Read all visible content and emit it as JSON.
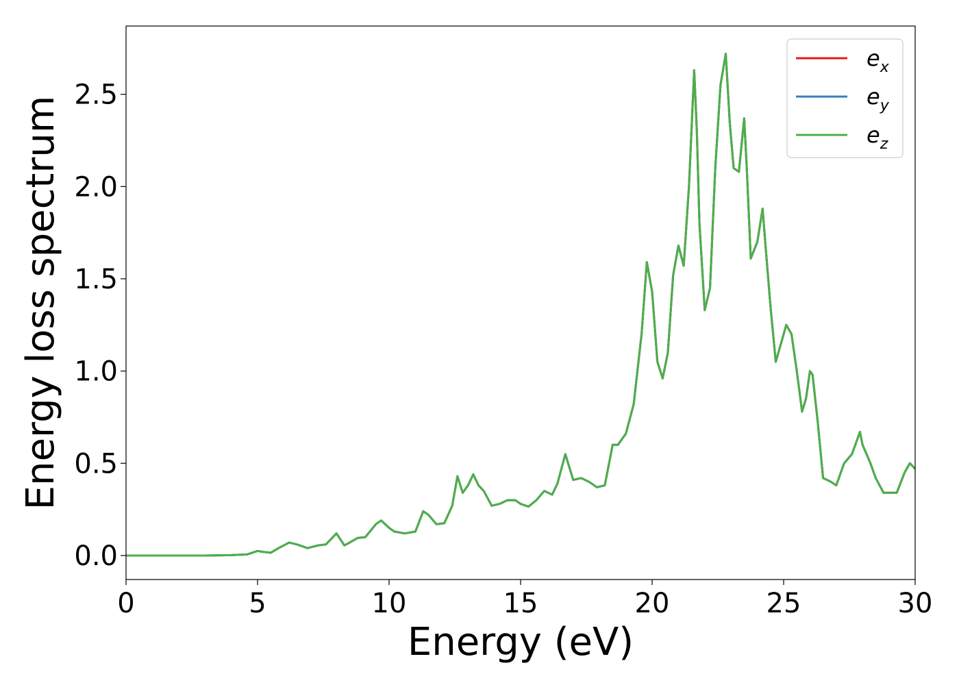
{
  "chart_data": {
    "type": "line",
    "xlabel": "Energy (eV)",
    "ylabel": "Energy loss spectrum",
    "xlim": [
      0,
      30
    ],
    "ylim": [
      -0.13,
      2.87
    ],
    "xticks": [
      0,
      5,
      10,
      15,
      20,
      25,
      30
    ],
    "xtick_labels": [
      "0",
      "5",
      "10",
      "15",
      "20",
      "25",
      "30"
    ],
    "yticks": [
      0.0,
      0.5,
      1.0,
      1.5,
      2.0,
      2.5
    ],
    "ytick_labels": [
      "0.0",
      "0.5",
      "1.0",
      "1.5",
      "2.0",
      "2.5"
    ],
    "grid": false,
    "legend_position": "top-right",
    "legend": [
      {
        "base": "e",
        "sub": "x",
        "color": "#e41a1c"
      },
      {
        "base": "e",
        "sub": "y",
        "color": "#377eb8"
      },
      {
        "base": "e",
        "sub": "z",
        "color": "#4daf4a"
      }
    ],
    "x": [
      0,
      1,
      2,
      3,
      4,
      4.6,
      5,
      5.2,
      5.5,
      5.8,
      6.2,
      6.5,
      6.9,
      7.3,
      7.6,
      8,
      8.3,
      8.5,
      8.8,
      9.1,
      9.5,
      9.7,
      10,
      10.2,
      10.6,
      11,
      11.3,
      11.5,
      11.8,
      12.1,
      12.4,
      12.6,
      12.8,
      13,
      13.2,
      13.4,
      13.6,
      13.9,
      14.2,
      14.5,
      14.8,
      15,
      15.3,
      15.6,
      15.9,
      16.2,
      16.4,
      16.7,
      17,
      17.3,
      17.6,
      17.9,
      18.2,
      18.5,
      18.7,
      19,
      19.3,
      19.6,
      19.8,
      20,
      20.2,
      20.4,
      20.6,
      20.8,
      21,
      21.2,
      21.4,
      21.6,
      21.7,
      21.8,
      22,
      22.2,
      22.4,
      22.6,
      22.8,
      22.95,
      23.1,
      23.3,
      23.5,
      23.6,
      23.75,
      24,
      24.2,
      24.3,
      24.5,
      24.7,
      24.9,
      25.1,
      25.3,
      25.5,
      25.7,
      25.85,
      26,
      26.1,
      26.3,
      26.5,
      26.8,
      27,
      27.3,
      27.6,
      27.9,
      28,
      28.3,
      28.5,
      28.8,
      29,
      29.3,
      29.6,
      29.8,
      30
    ],
    "series": [
      {
        "name": "e_x",
        "color": "#e41a1c",
        "values": [
          0,
          0,
          0,
          0,
          0.002,
          0.006,
          0.025,
          0.02,
          0.015,
          0.04,
          0.07,
          0.06,
          0.04,
          0.055,
          0.06,
          0.12,
          0.055,
          0.07,
          0.095,
          0.1,
          0.17,
          0.19,
          0.15,
          0.13,
          0.12,
          0.13,
          0.24,
          0.22,
          0.17,
          0.175,
          0.27,
          0.43,
          0.34,
          0.38,
          0.44,
          0.38,
          0.35,
          0.27,
          0.28,
          0.3,
          0.3,
          0.28,
          0.265,
          0.3,
          0.35,
          0.33,
          0.39,
          0.55,
          0.41,
          0.42,
          0.4,
          0.37,
          0.38,
          0.6,
          0.6,
          0.66,
          0.82,
          1.2,
          1.59,
          1.43,
          1.05,
          0.96,
          1.1,
          1.52,
          1.68,
          1.57,
          2.0,
          2.63,
          2.3,
          1.8,
          1.33,
          1.45,
          2.1,
          2.55,
          2.72,
          2.35,
          2.1,
          2.08,
          2.37,
          2.1,
          1.61,
          1.7,
          1.88,
          1.7,
          1.35,
          1.05,
          1.15,
          1.25,
          1.2,
          1.0,
          0.78,
          0.85,
          1.0,
          0.98,
          0.72,
          0.42,
          0.4,
          0.38,
          0.5,
          0.55,
          0.67,
          0.6,
          0.5,
          0.42,
          0.34,
          0.34,
          0.34,
          0.45,
          0.5,
          0.47
        ]
      },
      {
        "name": "e_y",
        "color": "#377eb8",
        "values": [
          0,
          0,
          0,
          0,
          0.002,
          0.006,
          0.025,
          0.02,
          0.015,
          0.04,
          0.07,
          0.06,
          0.04,
          0.055,
          0.06,
          0.12,
          0.055,
          0.07,
          0.095,
          0.1,
          0.17,
          0.19,
          0.15,
          0.13,
          0.12,
          0.13,
          0.24,
          0.22,
          0.17,
          0.175,
          0.27,
          0.43,
          0.34,
          0.38,
          0.44,
          0.38,
          0.35,
          0.27,
          0.28,
          0.3,
          0.3,
          0.28,
          0.265,
          0.3,
          0.35,
          0.33,
          0.39,
          0.55,
          0.41,
          0.42,
          0.4,
          0.37,
          0.38,
          0.6,
          0.6,
          0.66,
          0.82,
          1.2,
          1.59,
          1.43,
          1.05,
          0.96,
          1.1,
          1.52,
          1.68,
          1.57,
          2.0,
          2.63,
          2.3,
          1.8,
          1.33,
          1.45,
          2.1,
          2.55,
          2.72,
          2.35,
          2.1,
          2.08,
          2.37,
          2.1,
          1.61,
          1.7,
          1.88,
          1.7,
          1.35,
          1.05,
          1.15,
          1.25,
          1.2,
          1.0,
          0.78,
          0.85,
          1.0,
          0.98,
          0.72,
          0.42,
          0.4,
          0.38,
          0.5,
          0.55,
          0.67,
          0.6,
          0.5,
          0.42,
          0.34,
          0.34,
          0.34,
          0.45,
          0.5,
          0.47
        ]
      },
      {
        "name": "e_z",
        "color": "#4daf4a",
        "values": [
          0,
          0,
          0,
          0,
          0.002,
          0.006,
          0.025,
          0.02,
          0.015,
          0.04,
          0.07,
          0.06,
          0.04,
          0.055,
          0.06,
          0.12,
          0.055,
          0.07,
          0.095,
          0.1,
          0.17,
          0.19,
          0.15,
          0.13,
          0.12,
          0.13,
          0.24,
          0.22,
          0.17,
          0.175,
          0.27,
          0.43,
          0.34,
          0.38,
          0.44,
          0.38,
          0.35,
          0.27,
          0.28,
          0.3,
          0.3,
          0.28,
          0.265,
          0.3,
          0.35,
          0.33,
          0.39,
          0.55,
          0.41,
          0.42,
          0.4,
          0.37,
          0.38,
          0.6,
          0.6,
          0.66,
          0.82,
          1.2,
          1.59,
          1.43,
          1.05,
          0.96,
          1.1,
          1.52,
          1.68,
          1.57,
          2.0,
          2.63,
          2.3,
          1.8,
          1.33,
          1.45,
          2.1,
          2.55,
          2.72,
          2.35,
          2.1,
          2.08,
          2.37,
          2.1,
          1.61,
          1.7,
          1.88,
          1.7,
          1.35,
          1.05,
          1.15,
          1.25,
          1.2,
          1.0,
          0.78,
          0.85,
          1.0,
          0.98,
          0.72,
          0.42,
          0.4,
          0.38,
          0.5,
          0.55,
          0.67,
          0.6,
          0.5,
          0.42,
          0.34,
          0.34,
          0.34,
          0.45,
          0.5,
          0.47
        ]
      }
    ]
  }
}
